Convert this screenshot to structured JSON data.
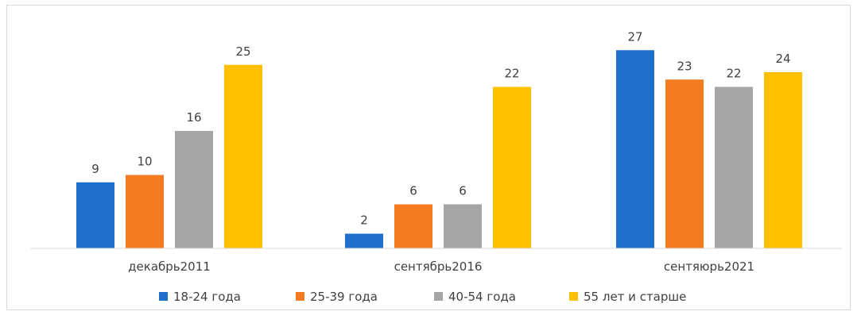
{
  "chart_data": {
    "type": "bar",
    "title": "",
    "xlabel": "",
    "ylabel": "",
    "ylim": [
      0,
      28
    ],
    "grid": false,
    "legend_position": "bottom",
    "categories": [
      "декабрь2011",
      "сентябрь2016",
      "сентяюрь2021"
    ],
    "series": [
      {
        "name": "18-24 года",
        "color": "#1f6fcd",
        "values": [
          9,
          2,
          27
        ]
      },
      {
        "name": "25-39 года",
        "color": "#f47b20",
        "values": [
          10,
          6,
          23
        ]
      },
      {
        "name": "40-54 года",
        "color": "#a5a5a5",
        "values": [
          16,
          6,
          22
        ]
      },
      {
        "name": "55 лет и старше",
        "color": "#ffc000",
        "values": [
          25,
          22,
          24
        ]
      }
    ]
  }
}
